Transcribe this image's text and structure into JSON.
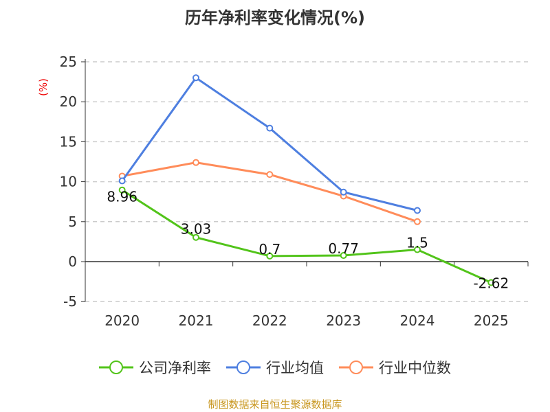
{
  "chart_data": {
    "type": "line",
    "title": "历年净利率变化情况(%)",
    "ylabel": "(%)",
    "xlabel": "",
    "categories": [
      "2020",
      "2021",
      "2022",
      "2023",
      "2024",
      "2025"
    ],
    "ylim": [
      -5,
      25
    ],
    "yticks": [
      -5,
      0,
      5,
      10,
      15,
      20,
      25
    ],
    "grid": true,
    "legend_position": "bottom",
    "series": [
      {
        "name": "公司净利率",
        "color": "#52c41a",
        "values": [
          8.96,
          3.03,
          0.7,
          0.77,
          1.5,
          -2.62
        ],
        "labels": [
          "8.96",
          "3.03",
          "0.7",
          "0.77",
          "1.5",
          "-2.62"
        ]
      },
      {
        "name": "行业均值",
        "color": "#4e7fe0",
        "values": [
          10.1,
          23.0,
          16.7,
          8.7,
          6.4,
          null
        ]
      },
      {
        "name": "行业中位数",
        "color": "#ff8c5a",
        "values": [
          10.7,
          12.4,
          10.9,
          8.2,
          5.0,
          null
        ]
      }
    ]
  },
  "source": "制图数据来自恒生聚源数据库"
}
